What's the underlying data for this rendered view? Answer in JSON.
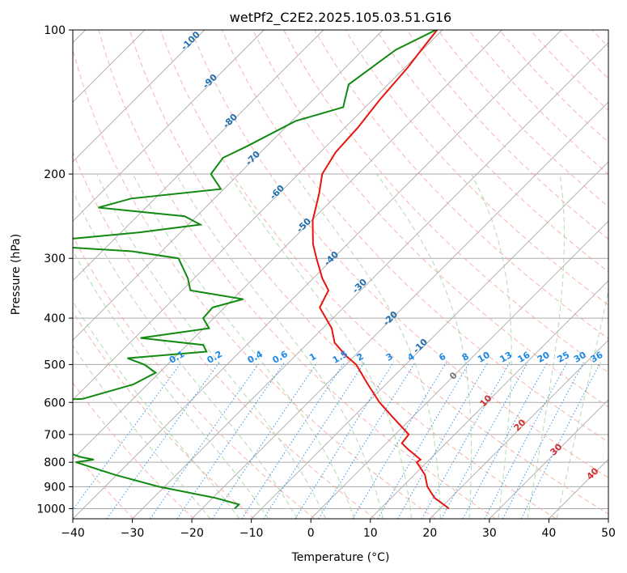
{
  "chart_data": {
    "type": "line",
    "title": "wetPf2_C2E2.2025.105.03.51.G16",
    "xlabel": "Temperature (°C)",
    "ylabel": "Pressure (hPa)",
    "xlim": [
      -40,
      50
    ],
    "ylim": [
      1050,
      100
    ],
    "y_scale": "log",
    "skew": true,
    "grid": true,
    "x_ticks": [
      -40,
      -30,
      -20,
      -10,
      0,
      10,
      20,
      30,
      40,
      50
    ],
    "y_ticks": [
      1000,
      900,
      800,
      700,
      600,
      500,
      400,
      300,
      200,
      100
    ],
    "series": [
      {
        "color": "#e8140e",
        "points": [
          [
            100,
            -60.9
          ],
          [
            110,
            -60.2
          ],
          [
            120,
            -59.5
          ],
          [
            140,
            -58.8
          ],
          [
            160,
            -57.8
          ],
          [
            180,
            -57.4
          ],
          [
            200,
            -56.0
          ],
          [
            220,
            -53.2
          ],
          [
            250,
            -49.8
          ],
          [
            280,
            -45.8
          ],
          [
            300,
            -42.8
          ],
          [
            330,
            -38.5
          ],
          [
            350,
            -35.4
          ],
          [
            380,
            -34.0
          ],
          [
            420,
            -28.5
          ],
          [
            450,
            -25.6
          ],
          [
            480,
            -21.4
          ],
          [
            500,
            -18.3
          ],
          [
            550,
            -13.0
          ],
          [
            600,
            -8.0
          ],
          [
            650,
            -2.7
          ],
          [
            700,
            2.3
          ],
          [
            730,
            2.6
          ],
          [
            750,
            4.5
          ],
          [
            790,
            8.5
          ],
          [
            800,
            8.3
          ],
          [
            850,
            11.8
          ],
          [
            900,
            14.2
          ],
          [
            950,
            17.3
          ],
          [
            985,
            20.3
          ],
          [
            1000,
            21.5
          ]
        ]
      },
      {
        "color": "#118a11",
        "points": [
          [
            100,
            -61.1
          ],
          [
            110,
            -64.5
          ],
          [
            130,
            -66.6
          ],
          [
            145,
            -63.7
          ],
          [
            155,
            -69.4
          ],
          [
            175,
            -73.3
          ],
          [
            185,
            -75.4
          ],
          [
            200,
            -74.7
          ],
          [
            215,
            -70.5
          ],
          [
            225,
            -84.0
          ],
          [
            235,
            -88.0
          ],
          [
            245,
            -72.0
          ],
          [
            255,
            -68.0
          ],
          [
            265,
            -77.0
          ],
          [
            280,
            -96.0
          ],
          [
            290,
            -75.0
          ],
          [
            300,
            -66.0
          ],
          [
            330,
            -61.1
          ],
          [
            350,
            -58.6
          ],
          [
            365,
            -48.3
          ],
          [
            380,
            -52.0
          ],
          [
            400,
            -51.8
          ],
          [
            420,
            -49.1
          ],
          [
            440,
            -59.0
          ],
          [
            455,
            -47.3
          ],
          [
            470,
            -45.6
          ],
          [
            485,
            -57.8
          ],
          [
            500,
            -53.9
          ],
          [
            520,
            -50.6
          ],
          [
            550,
            -52.4
          ],
          [
            590,
            -58.5
          ],
          [
            610,
            -105.9
          ],
          [
            640,
            -87.3
          ],
          [
            670,
            -99.1
          ],
          [
            700,
            -77.6
          ],
          [
            750,
            -54.4
          ],
          [
            780,
            -49.1
          ],
          [
            790,
            -46.4
          ],
          [
            800,
            -49.0
          ],
          [
            850,
            -40.3
          ],
          [
            900,
            -30.9
          ],
          [
            950,
            -19.5
          ],
          [
            980,
            -14.5
          ],
          [
            1000,
            -14.5
          ]
        ]
      }
    ],
    "mixing_ratio_labels": [
      "0.1",
      "0.2",
      "0.4",
      "0.6",
      "1",
      "1.5",
      "2",
      "3",
      "4",
      "6",
      "8",
      "10",
      "13",
      "16",
      "20",
      "25",
      "30",
      "36"
    ],
    "dry_adiabat_labels": [
      "-100",
      "-90",
      "-80",
      "-70",
      "-60",
      "-50",
      "-40",
      "-30",
      "-20",
      "-10"
    ],
    "moist_adiabat_labels": [
      "10",
      "20",
      "30",
      "40"
    ],
    "zero_label": "0"
  }
}
